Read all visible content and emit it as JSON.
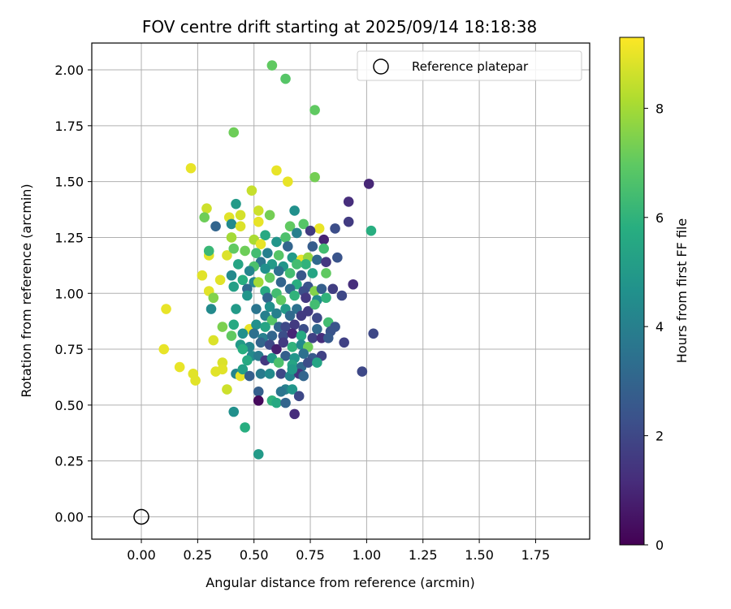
{
  "chart_data": {
    "type": "scatter",
    "title": "FOV centre drift starting at 2025/09/14 18:18:38",
    "xlabel": "Angular distance from reference (arcmin)",
    "ylabel": "Rotation from reference (arcmin)",
    "xlim": [
      -0.22,
      1.99
    ],
    "ylim": [
      -0.1,
      2.12
    ],
    "xticks": [
      0.0,
      0.25,
      0.5,
      0.75,
      1.0,
      1.25,
      1.5,
      1.75
    ],
    "xtick_labels": [
      "0.00",
      "0.25",
      "0.50",
      "0.75",
      "1.00",
      "1.25",
      "1.50",
      "1.75"
    ],
    "yticks": [
      0.0,
      0.25,
      0.5,
      0.75,
      1.0,
      1.25,
      1.5,
      1.75,
      2.0
    ],
    "ytick_labels": [
      "0.00",
      "0.25",
      "0.50",
      "0.75",
      "1.00",
      "1.25",
      "1.50",
      "1.75",
      "2.00"
    ],
    "grid": true,
    "legend": {
      "position": "top-right",
      "entries": [
        "Reference platepar"
      ]
    },
    "reference_point": {
      "x": 0.0,
      "y": 0.0,
      "marker": "hollow-circle",
      "name": "Reference platepar"
    },
    "colorbar": {
      "label": "Hours from first FF file",
      "colormap": "viridis",
      "range": [
        0,
        9.3
      ],
      "ticks": [
        0,
        2,
        4,
        6,
        8
      ],
      "tick_labels": [
        "0",
        "2",
        "4",
        "6",
        "8"
      ]
    },
    "points": [
      [
        0.58,
        2.02,
        7.0
      ],
      [
        0.64,
        1.96,
        6.8
      ],
      [
        0.77,
        1.82,
        7.0
      ],
      [
        0.41,
        1.72,
        7.2
      ],
      [
        0.22,
        1.56,
        9.0
      ],
      [
        0.6,
        1.55,
        9.0
      ],
      [
        0.65,
        1.5,
        9.0
      ],
      [
        0.77,
        1.52,
        7.3
      ],
      [
        1.01,
        1.49,
        1.0
      ],
      [
        0.49,
        1.46,
        8.5
      ],
      [
        0.92,
        1.41,
        1.2
      ],
      [
        0.42,
        1.4,
        5.0
      ],
      [
        0.29,
        1.38,
        8.6
      ],
      [
        0.68,
        1.37,
        4.6
      ],
      [
        0.52,
        1.37,
        8.6
      ],
      [
        0.33,
        1.3,
        3.0
      ],
      [
        0.28,
        1.34,
        7.2
      ],
      [
        0.44,
        1.35,
        8.7
      ],
      [
        0.39,
        1.34,
        8.9
      ],
      [
        0.57,
        1.35,
        7.3
      ],
      [
        0.4,
        1.31,
        4.4
      ],
      [
        0.44,
        1.3,
        8.8
      ],
      [
        0.52,
        1.32,
        9.0
      ],
      [
        0.66,
        1.3,
        7.0
      ],
      [
        0.72,
        1.31,
        6.8
      ],
      [
        0.79,
        1.29,
        9.0
      ],
      [
        0.92,
        1.32,
        1.6
      ],
      [
        1.02,
        1.28,
        5.8
      ],
      [
        0.86,
        1.29,
        2.2
      ],
      [
        0.75,
        1.28,
        1.6
      ],
      [
        0.69,
        1.27,
        4.0
      ],
      [
        0.64,
        1.25,
        6.6
      ],
      [
        0.81,
        1.24,
        0.9
      ],
      [
        0.55,
        1.26,
        5.6
      ],
      [
        0.4,
        1.25,
        8.0
      ],
      [
        0.5,
        1.24,
        8.1
      ],
      [
        0.6,
        1.23,
        4.8
      ],
      [
        0.65,
        1.21,
        3.0
      ],
      [
        0.76,
        1.21,
        2.7
      ],
      [
        0.81,
        1.2,
        6.4
      ],
      [
        0.53,
        1.22,
        9.0
      ],
      [
        0.3,
        1.17,
        8.9
      ],
      [
        0.3,
        1.19,
        6.2
      ],
      [
        0.38,
        1.17,
        8.8
      ],
      [
        0.41,
        1.2,
        7.0
      ],
      [
        0.46,
        1.19,
        7.2
      ],
      [
        0.51,
        1.18,
        6.4
      ],
      [
        0.56,
        1.18,
        4.0
      ],
      [
        0.61,
        1.17,
        6.8
      ],
      [
        0.67,
        1.16,
        5.0
      ],
      [
        0.71,
        1.15,
        9.0
      ],
      [
        0.74,
        1.16,
        7.8
      ],
      [
        0.78,
        1.15,
        3.2
      ],
      [
        0.87,
        1.16,
        2.4
      ],
      [
        0.82,
        1.14,
        1.5
      ],
      [
        0.73,
        1.13,
        6.0
      ],
      [
        0.69,
        1.13,
        6.4
      ],
      [
        0.63,
        1.12,
        4.8
      ],
      [
        0.58,
        1.13,
        5.0
      ],
      [
        0.53,
        1.14,
        3.6
      ],
      [
        0.5,
        1.12,
        6.6
      ],
      [
        0.48,
        1.1,
        4.2
      ],
      [
        0.43,
        1.13,
        5.4
      ],
      [
        0.55,
        1.11,
        4.6
      ],
      [
        0.61,
        1.1,
        3.4
      ],
      [
        0.66,
        1.09,
        6.4
      ],
      [
        0.71,
        1.08,
        2.5
      ],
      [
        0.76,
        1.09,
        5.4
      ],
      [
        0.82,
        1.09,
        7.0
      ],
      [
        0.27,
        1.08,
        8.9
      ],
      [
        0.4,
        1.08,
        4.4
      ],
      [
        0.35,
        1.06,
        8.9
      ],
      [
        0.45,
        1.06,
        5.8
      ],
      [
        0.5,
        1.05,
        4.2
      ],
      [
        0.57,
        1.07,
        7.0
      ],
      [
        0.52,
        1.05,
        8.0
      ],
      [
        0.62,
        1.05,
        3.0
      ],
      [
        0.69,
        1.04,
        5.8
      ],
      [
        0.74,
        1.03,
        2.4
      ],
      [
        0.85,
        1.02,
        1.7
      ],
      [
        0.94,
        1.04,
        1.2
      ],
      [
        0.3,
        1.01,
        8.9
      ],
      [
        0.41,
        1.03,
        5.2
      ],
      [
        0.47,
        1.02,
        3.2
      ],
      [
        0.55,
        1.01,
        5.6
      ],
      [
        0.6,
        1.0,
        6.4
      ],
      [
        0.66,
        1.02,
        3.2
      ],
      [
        0.72,
        1.01,
        2.2
      ],
      [
        0.77,
        1.01,
        7.5
      ],
      [
        0.8,
        1.02,
        2.8
      ],
      [
        0.32,
        0.98,
        7.5
      ],
      [
        0.47,
        0.99,
        4.8
      ],
      [
        0.56,
        0.98,
        3.0
      ],
      [
        0.62,
        0.97,
        7.0
      ],
      [
        0.68,
        0.99,
        6.0
      ],
      [
        0.73,
        0.98,
        1.5
      ],
      [
        0.78,
        0.97,
        4.4
      ],
      [
        0.82,
        0.98,
        6.0
      ],
      [
        0.89,
        0.99,
        2.0
      ],
      [
        0.11,
        0.93,
        9.0
      ],
      [
        0.31,
        0.93,
        4.4
      ],
      [
        0.42,
        0.93,
        5.0
      ],
      [
        0.51,
        0.93,
        3.6
      ],
      [
        0.57,
        0.94,
        4.6
      ],
      [
        0.64,
        0.93,
        5.0
      ],
      [
        0.69,
        0.93,
        3.4
      ],
      [
        0.74,
        0.92,
        1.6
      ],
      [
        0.77,
        0.95,
        6.4
      ],
      [
        0.55,
        0.9,
        4.0
      ],
      [
        0.58,
        0.88,
        6.8
      ],
      [
        0.6,
        0.91,
        4.0
      ],
      [
        0.66,
        0.9,
        3.2
      ],
      [
        0.71,
        0.9,
        1.6
      ],
      [
        0.78,
        0.89,
        2.0
      ],
      [
        0.83,
        0.87,
        6.4
      ],
      [
        0.86,
        0.85,
        2.4
      ],
      [
        0.36,
        0.85,
        7.4
      ],
      [
        0.41,
        0.86,
        5.6
      ],
      [
        0.48,
        0.84,
        9.0
      ],
      [
        0.51,
        0.86,
        4.6
      ],
      [
        0.55,
        0.85,
        5.4
      ],
      [
        0.61,
        0.85,
        3.0
      ],
      [
        0.64,
        0.85,
        2.0
      ],
      [
        0.68,
        0.86,
        1.6
      ],
      [
        0.72,
        0.84,
        2.2
      ],
      [
        0.78,
        0.84,
        3.2
      ],
      [
        0.84,
        0.83,
        2.4
      ],
      [
        0.4,
        0.81,
        7.0
      ],
      [
        0.45,
        0.82,
        4.6
      ],
      [
        0.5,
        0.82,
        3.4
      ],
      [
        0.54,
        0.8,
        4.0
      ],
      [
        0.58,
        0.81,
        3.0
      ],
      [
        0.63,
        0.81,
        2.2
      ],
      [
        0.67,
        0.82,
        1.0
      ],
      [
        0.71,
        0.81,
        5.6
      ],
      [
        0.76,
        0.8,
        1.8
      ],
      [
        0.8,
        0.8,
        1.2
      ],
      [
        0.83,
        0.8,
        2.6
      ],
      [
        0.9,
        0.78,
        1.8
      ],
      [
        1.03,
        0.82,
        2.0
      ],
      [
        0.32,
        0.79,
        8.8
      ],
      [
        0.44,
        0.77,
        5.0
      ],
      [
        0.48,
        0.76,
        4.2
      ],
      [
        0.53,
        0.78,
        3.0
      ],
      [
        0.57,
        0.77,
        2.0
      ],
      [
        0.6,
        0.75,
        0.8
      ],
      [
        0.63,
        0.78,
        1.6
      ],
      [
        0.67,
        0.76,
        6.0
      ],
      [
        0.71,
        0.77,
        4.4
      ],
      [
        0.74,
        0.76,
        7.2
      ],
      [
        0.1,
        0.75,
        9.0
      ],
      [
        0.45,
        0.75,
        5.8
      ],
      [
        0.49,
        0.72,
        4.4
      ],
      [
        0.52,
        0.72,
        3.8
      ],
      [
        0.55,
        0.7,
        1.5
      ],
      [
        0.58,
        0.71,
        5.0
      ],
      [
        0.64,
        0.72,
        2.8
      ],
      [
        0.68,
        0.71,
        4.8
      ],
      [
        0.72,
        0.73,
        3.4
      ],
      [
        0.76,
        0.71,
        2.6
      ],
      [
        0.8,
        0.72,
        1.8
      ],
      [
        0.47,
        0.7,
        5.6
      ],
      [
        0.61,
        0.69,
        6.6
      ],
      [
        0.67,
        0.68,
        5.4
      ],
      [
        0.71,
        0.67,
        3.2
      ],
      [
        0.74,
        0.69,
        2.2
      ],
      [
        0.78,
        0.69,
        5.4
      ],
      [
        0.17,
        0.67,
        9.0
      ],
      [
        0.36,
        0.69,
        8.8
      ],
      [
        0.36,
        0.66,
        8.9
      ],
      [
        0.33,
        0.65,
        8.9
      ],
      [
        0.23,
        0.64,
        8.9
      ],
      [
        0.24,
        0.61,
        8.9
      ],
      [
        0.42,
        0.64,
        4.2
      ],
      [
        0.44,
        0.63,
        9.0
      ],
      [
        0.45,
        0.66,
        5.2
      ],
      [
        0.48,
        0.63,
        2.8
      ],
      [
        0.53,
        0.64,
        3.8
      ],
      [
        0.57,
        0.64,
        4.4
      ],
      [
        0.62,
        0.64,
        2.0
      ],
      [
        0.66,
        0.63,
        4.2
      ],
      [
        0.7,
        0.64,
        1.4
      ],
      [
        0.72,
        0.63,
        3.0
      ],
      [
        0.67,
        0.66,
        5.0
      ],
      [
        0.98,
        0.65,
        2.0
      ],
      [
        0.38,
        0.57,
        8.6
      ],
      [
        0.52,
        0.56,
        2.8
      ],
      [
        0.64,
        0.57,
        4.0
      ],
      [
        0.67,
        0.57,
        4.8
      ],
      [
        0.62,
        0.56,
        3.6
      ],
      [
        0.52,
        0.52,
        0.2
      ],
      [
        0.58,
        0.52,
        6.0
      ],
      [
        0.6,
        0.51,
        5.6
      ],
      [
        0.64,
        0.51,
        3.0
      ],
      [
        0.7,
        0.54,
        2.0
      ],
      [
        0.41,
        0.47,
        4.6
      ],
      [
        0.46,
        0.4,
        5.8
      ],
      [
        0.68,
        0.46,
        1.2
      ],
      [
        0.52,
        0.28,
        5.0
      ]
    ]
  }
}
